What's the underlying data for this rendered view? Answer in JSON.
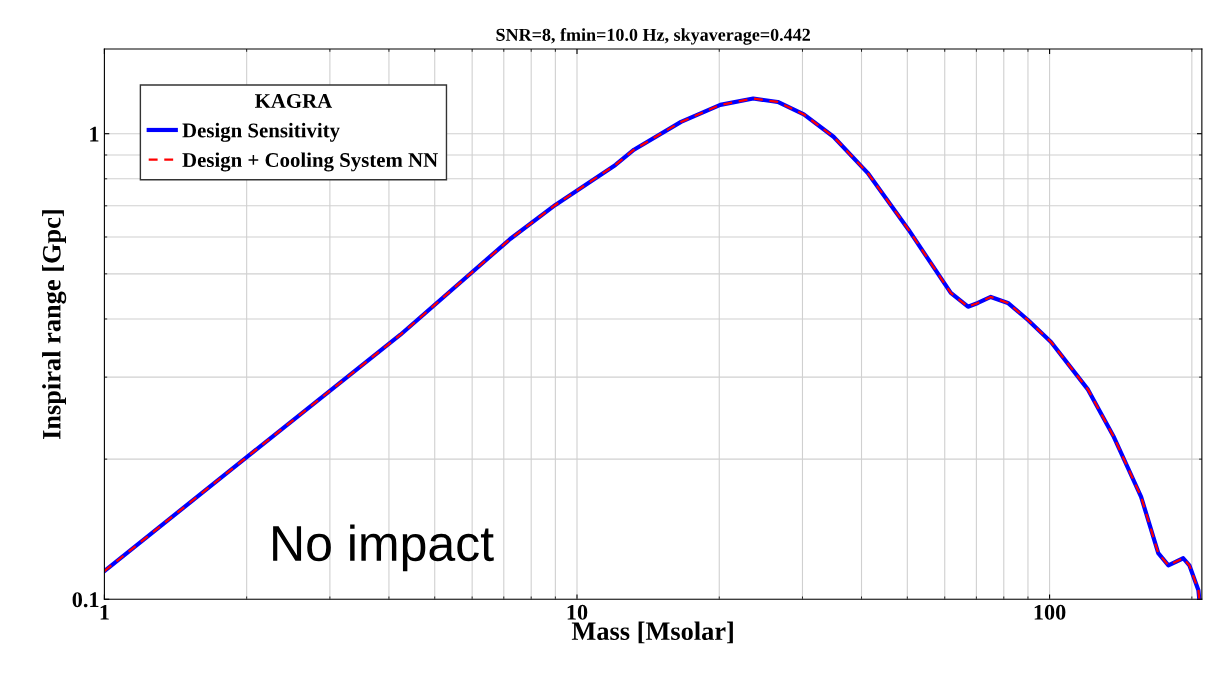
{
  "chart_data": {
    "type": "line",
    "title": "SNR=8, fmin=10.0 Hz, skyaverage=0.442",
    "xlabel": "Mass [Msolar]",
    "ylabel": "Inspiral range [Gpc]",
    "legend_title": "KAGRA",
    "x": [
      1.0,
      2.05,
      4.23,
      7.22,
      9.0,
      12.06,
      13.2,
      16.6,
      20.1,
      23.6,
      26.6,
      30.2,
      34.9,
      41.2,
      50.3,
      61.8,
      67.2,
      70.5,
      75.1,
      81.6,
      90.0,
      100.7,
      120.6,
      136.8,
      156.2,
      169.8,
      178.4,
      191.8,
      197.6,
      206.5,
      207.4
    ],
    "series": [
      {
        "name": "Design Sensitivity",
        "color": "#0000ff",
        "line_style": "solid",
        "values": [
          0.115,
          0.206,
          0.37,
          0.594,
          0.703,
          0.857,
          0.924,
          1.06,
          1.153,
          1.19,
          1.17,
          1.1,
          0.985,
          0.824,
          0.622,
          0.455,
          0.425,
          0.433,
          0.446,
          0.433,
          0.398,
          0.357,
          0.282,
          0.223,
          0.166,
          0.1256,
          0.1183,
          0.1225,
          0.1183,
          0.1046,
          0.1
        ]
      },
      {
        "name": "Design + Cooling System NN",
        "color": "#ff0000",
        "line_style": "dashed",
        "values": [
          0.115,
          0.206,
          0.37,
          0.594,
          0.703,
          0.857,
          0.924,
          1.06,
          1.153,
          1.19,
          1.17,
          1.1,
          0.985,
          0.824,
          0.622,
          0.455,
          0.425,
          0.433,
          0.446,
          0.433,
          0.398,
          0.357,
          0.282,
          0.223,
          0.166,
          0.1256,
          0.1183,
          0.1225,
          0.1183,
          0.1046,
          0.1
        ]
      }
    ],
    "log": "xy",
    "xlim": [
      1,
      210
    ],
    "ylim": [
      0.1,
      1.52
    ],
    "xticks": [
      1,
      10,
      100
    ],
    "yticks": [
      0.1,
      1
    ],
    "grid": true,
    "legend": "top left",
    "marker": "none",
    "annotations": [
      {
        "text": "No impact"
      }
    ]
  }
}
